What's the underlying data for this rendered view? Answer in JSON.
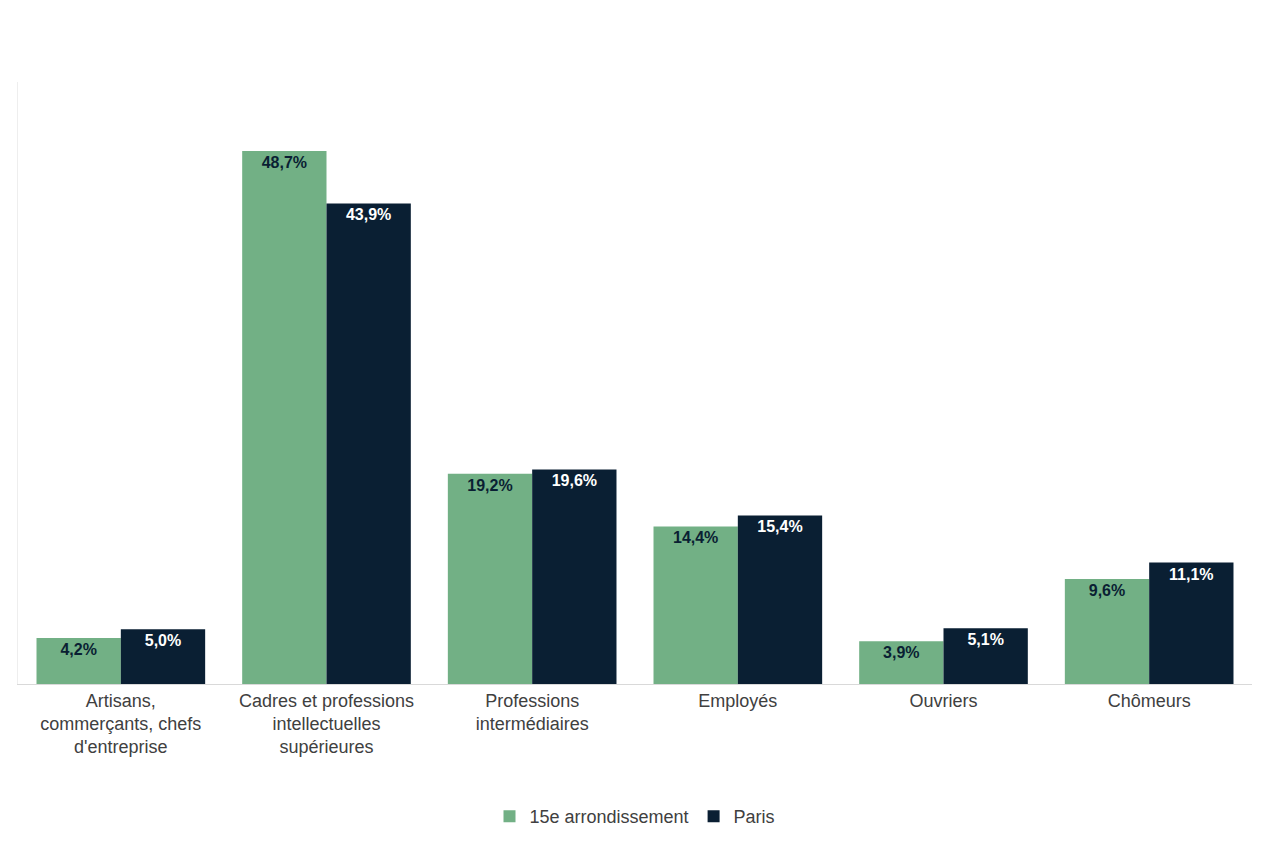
{
  "chart_data": {
    "type": "bar",
    "categories": [
      "Artisans, commerçants, chefs d'entreprise",
      "Cadres et professions intellectuelles supérieures",
      "Professions intermédiaires",
      "Employés",
      "Ouvriers",
      "Chômeurs"
    ],
    "series": [
      {
        "name": "15e arrondissement",
        "color": "#72b085",
        "values": [
          4.2,
          48.7,
          19.2,
          14.4,
          3.9,
          9.6
        ],
        "value_labels": [
          "4,2%",
          "48,7%",
          "19,2%",
          "14,4%",
          "3,9%",
          "9,6%"
        ]
      },
      {
        "name": "Paris",
        "color": "#0a1f33",
        "values": [
          5.0,
          43.9,
          19.6,
          15.4,
          5.1,
          11.1
        ],
        "value_labels": [
          "5,0%",
          "43,9%",
          "19,6%",
          "15,4%",
          "5,1%",
          "11,1%"
        ]
      }
    ],
    "ylim": [
      0,
      55
    ],
    "data_labels": true,
    "tick_labels": "x",
    "grid": false,
    "legend": "bottom"
  }
}
